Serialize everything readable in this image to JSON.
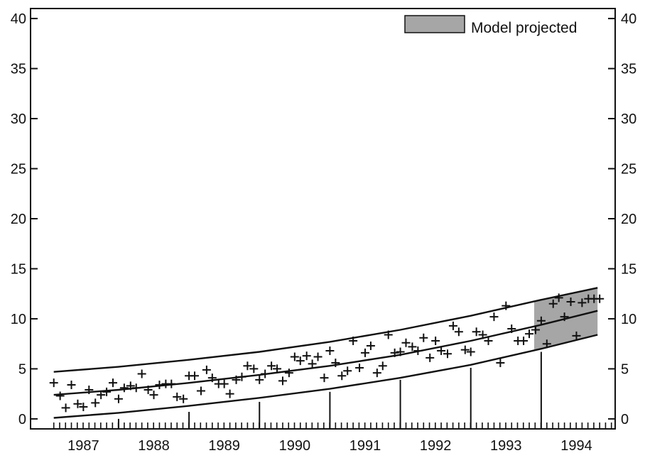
{
  "chart_data": {
    "type": "scatter",
    "title": "",
    "xlabel": "",
    "ylabel": "",
    "ylim": [
      -1,
      41
    ],
    "xlim": [
      1986.25,
      1994.55
    ],
    "y_ticks": [
      0,
      5,
      10,
      15,
      20,
      25,
      30,
      35,
      40
    ],
    "y_tick_labels": [
      "0",
      "5",
      "10",
      "15",
      "20",
      "25",
      "30",
      "35",
      "40"
    ],
    "x_tick_labels": [
      "1987",
      "1988",
      "1989",
      "1990",
      "1991",
      "1992",
      "1993",
      "1994"
    ],
    "x_tick_label_years": [
      1987,
      1988,
      1989,
      1990,
      1991,
      1992,
      1993,
      1994
    ],
    "grid": false,
    "legend": {
      "position": "top-right",
      "label": "Model projected",
      "color": "#a6a6a6"
    },
    "projected_band": {
      "x_start": 1993.4,
      "x_end": 1994.3
    },
    "year_markers": [
      {
        "x": 1987.5,
        "height": 0
      },
      {
        "x": 1988.5,
        "height": 0.7
      },
      {
        "x": 1989.5,
        "height": 1.7
      },
      {
        "x": 1990.5,
        "height": 2.7
      },
      {
        "x": 1991.5,
        "height": 3.9
      },
      {
        "x": 1992.5,
        "height": 5.1
      },
      {
        "x": 1993.5,
        "height": 6.7
      }
    ],
    "series": [
      {
        "kind": "curve",
        "x": [
          1986.58,
          1987.5,
          1988.5,
          1989.5,
          1990.5,
          1991.5,
          1992.5,
          1993.5,
          1994.3
        ],
        "values": [
          4.7,
          5.2,
          5.9,
          6.7,
          7.7,
          8.9,
          10.3,
          11.9,
          13.1
        ]
      },
      {
        "kind": "curve",
        "x": [
          1986.58,
          1987.5,
          1988.5,
          1989.5,
          1990.5,
          1991.5,
          1992.5,
          1993.5,
          1994.3
        ],
        "values": [
          2.4,
          2.9,
          3.6,
          4.4,
          5.3,
          6.4,
          7.8,
          9.4,
          10.8
        ]
      },
      {
        "kind": "curve",
        "x": [
          1986.58,
          1987.5,
          1988.5,
          1989.5,
          1990.5,
          1991.5,
          1992.5,
          1993.5,
          1994.3
        ],
        "values": [
          0.1,
          0.6,
          1.3,
          2.1,
          3.0,
          4.1,
          5.4,
          7.0,
          8.4
        ]
      },
      {
        "kind": "points",
        "marker": "+",
        "x": [
          1986.58,
          1986.67,
          1986.75,
          1986.83,
          1986.92,
          1987.0,
          1987.08,
          1987.17,
          1987.25,
          1987.33,
          1987.42,
          1987.5,
          1987.58,
          1987.67,
          1987.75,
          1987.83,
          1987.92,
          1988.0,
          1988.08,
          1988.17,
          1988.25,
          1988.33,
          1988.42,
          1988.5,
          1988.58,
          1988.67,
          1988.75,
          1988.83,
          1988.92,
          1989.0,
          1989.08,
          1989.17,
          1989.25,
          1989.33,
          1989.42,
          1989.5,
          1989.58,
          1989.67,
          1989.75,
          1989.83,
          1989.92,
          1990.0,
          1990.08,
          1990.17,
          1990.25,
          1990.33,
          1990.42,
          1990.5,
          1990.58,
          1990.67,
          1990.75,
          1990.83,
          1990.92,
          1991.0,
          1991.08,
          1991.17,
          1991.25,
          1991.33,
          1991.42,
          1991.5,
          1991.58,
          1991.67,
          1991.75,
          1991.83,
          1991.92,
          1992.0,
          1992.08,
          1992.17,
          1992.25,
          1992.33,
          1992.42,
          1992.5,
          1992.58,
          1992.67,
          1992.75,
          1992.83,
          1992.92,
          1993.0,
          1993.08,
          1993.17,
          1993.25,
          1993.33,
          1993.42,
          1993.5,
          1993.58,
          1993.67,
          1993.75,
          1993.83,
          1993.92,
          1994.0,
          1994.08,
          1994.17,
          1994.25,
          1994.33
        ],
        "values": [
          3.6,
          2.3,
          1.1,
          3.4,
          1.5,
          1.2,
          2.9,
          1.6,
          2.4,
          2.7,
          3.6,
          2.0,
          3.1,
          3.3,
          3.1,
          4.5,
          2.9,
          2.4,
          3.4,
          3.5,
          3.5,
          2.2,
          2.0,
          4.3,
          4.3,
          2.8,
          4.9,
          4.1,
          3.5,
          3.5,
          2.5,
          3.9,
          4.2,
          5.3,
          5.0,
          3.9,
          4.5,
          5.3,
          5.0,
          3.8,
          4.6,
          6.2,
          5.8,
          6.3,
          5.5,
          6.2,
          4.1,
          6.8,
          5.6,
          4.3,
          4.8,
          7.8,
          5.1,
          6.6,
          7.3,
          4.6,
          5.3,
          8.4,
          6.6,
          6.7,
          7.6,
          7.2,
          6.8,
          8.1,
          6.1,
          7.8,
          6.8,
          6.5,
          9.3,
          8.7,
          6.9,
          6.7,
          8.7,
          8.4,
          7.8,
          10.2,
          5.6,
          11.3,
          9.0,
          7.8,
          7.8,
          8.5,
          8.9,
          9.8,
          7.5,
          11.5,
          12.1,
          10.2,
          11.7,
          8.3,
          11.6,
          12.0,
          12.0,
          12.0
        ]
      }
    ]
  }
}
